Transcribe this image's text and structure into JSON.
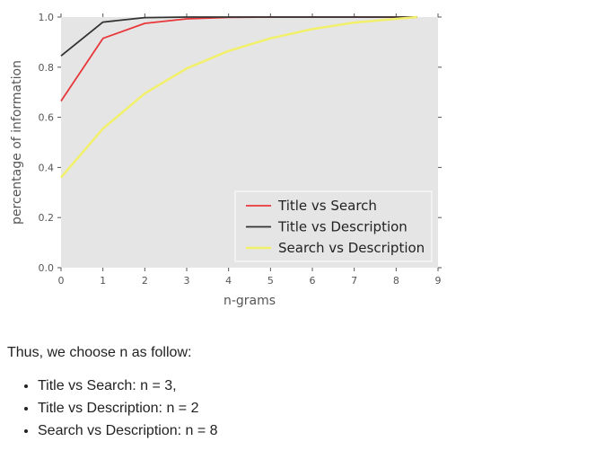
{
  "chart_data": {
    "type": "line",
    "xlabel": "n-grams",
    "ylabel": "percentage of information",
    "xlim": [
      0,
      9
    ],
    "ylim": [
      0.0,
      1.0
    ],
    "x_ticks": [
      "0",
      "1",
      "2",
      "3",
      "4",
      "5",
      "6",
      "7",
      "8",
      "9"
    ],
    "y_ticks": [
      "0.0",
      "0.2",
      "0.4",
      "0.6",
      "0.8",
      "1.0"
    ],
    "grid": false,
    "legend_position": "lower-right",
    "series": [
      {
        "name": "Title vs Search",
        "color": "#e8373a",
        "x": [
          0,
          1,
          2,
          3,
          4,
          5,
          6,
          7,
          8,
          8.5
        ],
        "y": [
          0.665,
          0.915,
          0.975,
          0.993,
          0.999,
          1.0,
          1.0,
          1.0,
          1.0,
          1.0
        ]
      },
      {
        "name": "Title vs Description",
        "color": "#333333",
        "x": [
          0,
          1,
          2,
          3,
          4,
          5,
          6,
          7,
          8,
          8.5
        ],
        "y": [
          0.845,
          0.98,
          0.998,
          1.0,
          1.0,
          1.0,
          1.0,
          1.0,
          1.0,
          1.0
        ]
      },
      {
        "name": "Search vs Description",
        "color": "#f2f06a",
        "x": [
          0,
          1,
          2,
          3,
          4,
          5,
          6,
          7,
          8,
          8.5
        ],
        "y": [
          0.36,
          0.555,
          0.695,
          0.795,
          0.865,
          0.915,
          0.952,
          0.978,
          0.993,
          1.0
        ]
      }
    ]
  },
  "text": {
    "intro": "Thus, we choose n as follow:",
    "bullets": [
      "Title vs Search: n = 3,",
      "Title vs Description: n = 2",
      "Search vs Description: n = 8"
    ]
  }
}
